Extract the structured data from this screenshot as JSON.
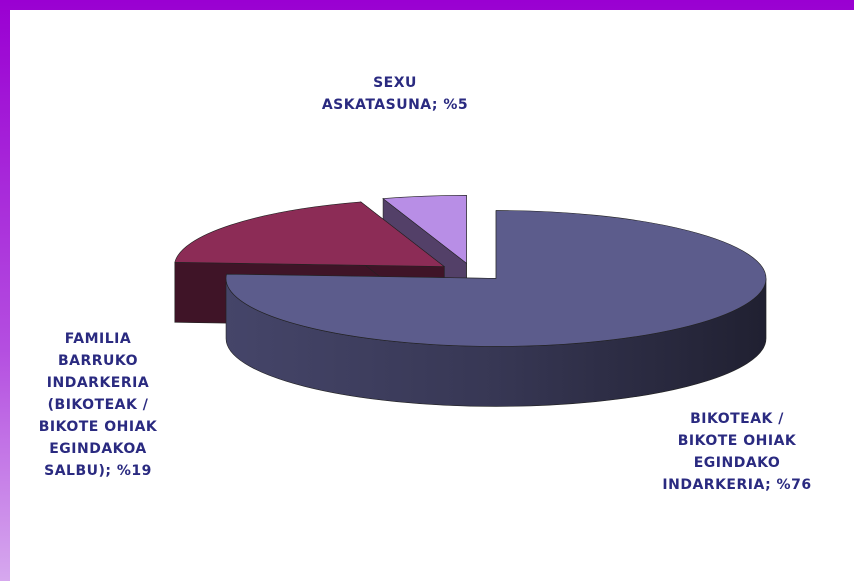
{
  "chart_data": {
    "type": "pie3d",
    "values": [
      76,
      19,
      5
    ],
    "value_labels": [
      "BIKOTEAK / BIKOTE OHIAK EGINDAKO INDARKERIA; %76",
      "FAMILIA BARRUKO INDARKERIA (BIKOTEAK / BIKOTE OHIAK EGINDAKOA SALBU); %19",
      "SEXU ASKATASUNA; %5"
    ],
    "colors": [
      "#5c5c8c",
      "#8c2c56",
      "#b88ee6"
    ]
  }
}
